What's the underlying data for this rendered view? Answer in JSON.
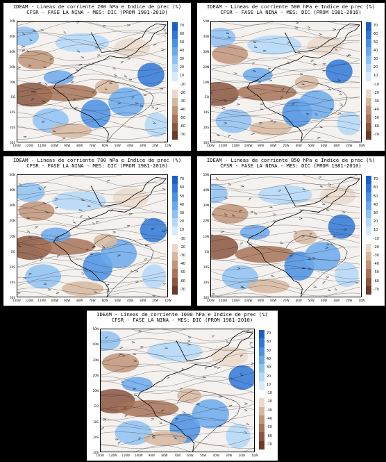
{
  "title_line2": "CFSR - FASE LA NINA - MES: DIC (PROM 1981-2010)",
  "panels": [
    {
      "title": "IDEAM - Lineas de corriente 200 hPa e Indice de prec (%)"
    },
    {
      "title": "IDEAM - Lineas de corriente 500 hPa e Indice de prec (%)"
    },
    {
      "title": "IDEAM - Lineas de corriente 700 hPa e Indice de prec (%)"
    },
    {
      "title": "IDEAM - Lineas de corriente 850 hPa e Indice de prec (%)"
    },
    {
      "title": "IDEAM - Lineas de corriente 1000 hPa e Indice de prec (%)"
    }
  ],
  "lat_labels": [
    "50N",
    "40N",
    "30N",
    "20N",
    "10N",
    "EQ",
    "10S",
    "20S",
    "30S"
  ],
  "lon_labels": [
    "130W",
    "120W",
    "110W",
    "100W",
    "90W",
    "80W",
    "70W",
    "60W",
    "50W",
    "40W",
    "30W",
    "20W",
    "10W"
  ],
  "colorbar": {
    "ticks": [
      "70",
      "60",
      "50",
      "40",
      "30",
      "20",
      "10",
      "-10",
      "-20",
      "-30",
      "-40",
      "-50",
      "-60",
      "-70"
    ],
    "colors": [
      "#1c5fc4",
      "#2f78d8",
      "#4a91e3",
      "#6aa9ec",
      "#8ec2f3",
      "#b3d8f8",
      "#d8ebfc",
      "#ffffff",
      "#ead9cb",
      "#d6b8a0",
      "#c09478",
      "#a77458",
      "#8a5640",
      "#6b3a28"
    ]
  }
}
